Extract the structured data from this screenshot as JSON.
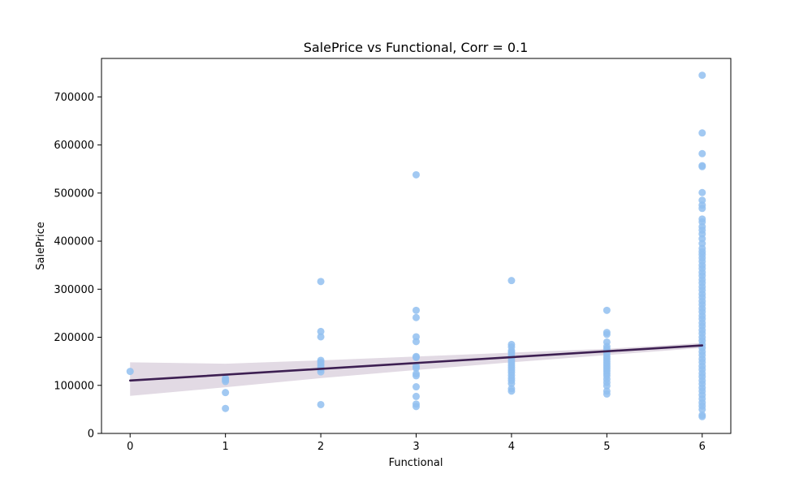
{
  "chart_data": {
    "type": "scatter",
    "title": "SalePrice vs Functional, Corr = 0.1",
    "xlabel": "Functional",
    "ylabel": "SalePrice",
    "xlim": [
      -0.3,
      6.3
    ],
    "ylim": [
      0,
      780000
    ],
    "xticks": [
      0,
      1,
      2,
      3,
      4,
      5,
      6
    ],
    "yticks": [
      0,
      100000,
      200000,
      300000,
      400000,
      500000,
      600000,
      700000
    ],
    "grid": false,
    "colors": {
      "points": "#92c0f0",
      "fit_line": "#3d1f52",
      "ci_band": "#e2dae4"
    },
    "series": [
      {
        "kind": "points",
        "points": [
          [
            0,
            129000
          ],
          [
            1,
            115000
          ],
          [
            1,
            112000
          ],
          [
            1,
            108000
          ],
          [
            1,
            85000
          ],
          [
            1,
            52000
          ],
          [
            2,
            316000
          ],
          [
            2,
            212000
          ],
          [
            2,
            201000
          ],
          [
            2,
            152000
          ],
          [
            2,
            148000
          ],
          [
            2,
            143000
          ],
          [
            2,
            138000
          ],
          [
            2,
            133000
          ],
          [
            2,
            128000
          ],
          [
            2,
            60000
          ],
          [
            3,
            538000
          ],
          [
            3,
            256000
          ],
          [
            3,
            241000
          ],
          [
            3,
            201000
          ],
          [
            3,
            191000
          ],
          [
            3,
            160000
          ],
          [
            3,
            158000
          ],
          [
            3,
            140000
          ],
          [
            3,
            136000
          ],
          [
            3,
            124000
          ],
          [
            3,
            120000
          ],
          [
            3,
            97000
          ],
          [
            3,
            77000
          ],
          [
            3,
            61000
          ],
          [
            3,
            56000
          ],
          [
            4,
            318000
          ],
          [
            4,
            185000
          ],
          [
            4,
            180000
          ],
          [
            4,
            172000
          ],
          [
            4,
            168000
          ],
          [
            4,
            163000
          ],
          [
            4,
            158000
          ],
          [
            4,
            152000
          ],
          [
            4,
            147000
          ],
          [
            4,
            142000
          ],
          [
            4,
            137000
          ],
          [
            4,
            132000
          ],
          [
            4,
            127000
          ],
          [
            4,
            121000
          ],
          [
            4,
            115000
          ],
          [
            4,
            110000
          ],
          [
            4,
            104000
          ],
          [
            4,
            93000
          ],
          [
            4,
            88000
          ],
          [
            5,
            256000
          ],
          [
            5,
            210000
          ],
          [
            5,
            206000
          ],
          [
            5,
            190000
          ],
          [
            5,
            181000
          ],
          [
            5,
            176000
          ],
          [
            5,
            171000
          ],
          [
            5,
            166000
          ],
          [
            5,
            160000
          ],
          [
            5,
            155000
          ],
          [
            5,
            150000
          ],
          [
            5,
            145000
          ],
          [
            5,
            140000
          ],
          [
            5,
            135000
          ],
          [
            5,
            130000
          ],
          [
            5,
            125000
          ],
          [
            5,
            120000
          ],
          [
            5,
            113000
          ],
          [
            5,
            106000
          ],
          [
            5,
            99000
          ],
          [
            5,
            88000
          ],
          [
            5,
            82000
          ],
          [
            6,
            745000
          ],
          [
            6,
            625000
          ],
          [
            6,
            582000
          ],
          [
            6,
            557000
          ],
          [
            6,
            555000
          ],
          [
            6,
            501000
          ],
          [
            6,
            485000
          ],
          [
            6,
            475000
          ],
          [
            6,
            468000
          ],
          [
            6,
            446000
          ],
          [
            6,
            440000
          ],
          [
            6,
            430000
          ],
          [
            6,
            423000
          ],
          [
            6,
            415000
          ],
          [
            6,
            405000
          ],
          [
            6,
            395000
          ],
          [
            6,
            385000
          ],
          [
            6,
            378000
          ],
          [
            6,
            372000
          ],
          [
            6,
            365000
          ],
          [
            6,
            358000
          ],
          [
            6,
            350000
          ],
          [
            6,
            343000
          ],
          [
            6,
            335000
          ],
          [
            6,
            328000
          ],
          [
            6,
            320000
          ],
          [
            6,
            313000
          ],
          [
            6,
            305000
          ],
          [
            6,
            298000
          ],
          [
            6,
            290000
          ],
          [
            6,
            283000
          ],
          [
            6,
            275000
          ],
          [
            6,
            268000
          ],
          [
            6,
            260000
          ],
          [
            6,
            253000
          ],
          [
            6,
            245000
          ],
          [
            6,
            238000
          ],
          [
            6,
            230000
          ],
          [
            6,
            223000
          ],
          [
            6,
            215000
          ],
          [
            6,
            208000
          ],
          [
            6,
            200000
          ],
          [
            6,
            193000
          ],
          [
            6,
            185000
          ],
          [
            6,
            178000
          ],
          [
            6,
            170000
          ],
          [
            6,
            163000
          ],
          [
            6,
            155000
          ],
          [
            6,
            148000
          ],
          [
            6,
            140000
          ],
          [
            6,
            133000
          ],
          [
            6,
            125000
          ],
          [
            6,
            118000
          ],
          [
            6,
            110000
          ],
          [
            6,
            103000
          ],
          [
            6,
            95000
          ],
          [
            6,
            88000
          ],
          [
            6,
            80000
          ],
          [
            6,
            72000
          ],
          [
            6,
            64000
          ],
          [
            6,
            57000
          ],
          [
            6,
            50000
          ],
          [
            6,
            38000
          ],
          [
            6,
            35000
          ]
        ]
      },
      {
        "kind": "regression",
        "line": [
          [
            0,
            110000
          ],
          [
            6,
            183000
          ]
        ],
        "ci_upper": [
          [
            0,
            148000
          ],
          [
            1,
            145000
          ],
          [
            2,
            152000
          ],
          [
            3,
            160000
          ],
          [
            4,
            168000
          ],
          [
            5,
            176000
          ],
          [
            6,
            188000
          ]
        ],
        "ci_lower": [
          [
            0,
            78000
          ],
          [
            1,
            96000
          ],
          [
            2,
            115000
          ],
          [
            3,
            132000
          ],
          [
            4,
            148000
          ],
          [
            5,
            163000
          ],
          [
            6,
            178000
          ]
        ]
      }
    ]
  }
}
